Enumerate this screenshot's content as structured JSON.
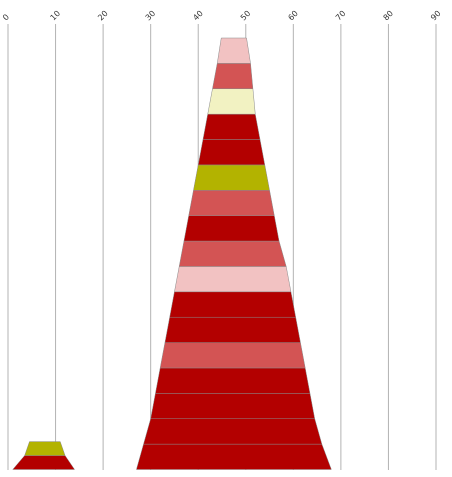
{
  "chart_data": {
    "type": "bar",
    "subtype": "stacked-pyramid",
    "title": "",
    "xlabel": "",
    "ylabel": "",
    "xlim": [
      0,
      90
    ],
    "x_ticks": [
      0,
      10,
      20,
      30,
      40,
      50,
      60,
      70,
      80,
      90
    ],
    "x_tick_labels": [
      "0",
      "10",
      "20",
      "30",
      "40",
      "50",
      "60",
      "70",
      "80",
      "90"
    ],
    "tick_label_position": "top",
    "tick_label_rotation_deg": -45,
    "grid": true,
    "legend": "none",
    "stacks": [
      {
        "name": "",
        "segments": [
          {
            "left": 1,
            "right": 14,
            "color": "#b30000"
          },
          {
            "left": 3.5,
            "right": 12,
            "color": "#b3b300"
          }
        ]
      },
      {
        "name": "",
        "segments": [
          {
            "left": 27,
            "right": 68,
            "color": "#b30000"
          },
          {
            "left": 28.5,
            "right": 66,
            "color": "#b30000"
          },
          {
            "left": 30,
            "right": 64.5,
            "color": "#b30000"
          },
          {
            "left": 31,
            "right": 63.5,
            "color": "#b30000"
          },
          {
            "left": 32,
            "right": 62.5,
            "color": "#d35454"
          },
          {
            "left": 33,
            "right": 61.5,
            "color": "#b30000"
          },
          {
            "left": 34,
            "right": 60.5,
            "color": "#b30000"
          },
          {
            "left": 35,
            "right": 59.5,
            "color": "#f2c2c2"
          },
          {
            "left": 36,
            "right": 58.5,
            "color": "#d35454"
          },
          {
            "left": 37,
            "right": 57,
            "color": "#b30000"
          },
          {
            "left": 38,
            "right": 56,
            "color": "#d35454"
          },
          {
            "left": 39,
            "right": 55,
            "color": "#b3b300"
          },
          {
            "left": 40,
            "right": 54,
            "color": "#b30000"
          },
          {
            "left": 41,
            "right": 53,
            "color": "#b30000"
          },
          {
            "left": 42,
            "right": 52,
            "color": "#f2f2c2"
          },
          {
            "left": 43,
            "right": 51.5,
            "color": "#d35454"
          },
          {
            "left": 44,
            "right": 51,
            "color": "#f2c2c2"
          }
        ]
      }
    ]
  }
}
